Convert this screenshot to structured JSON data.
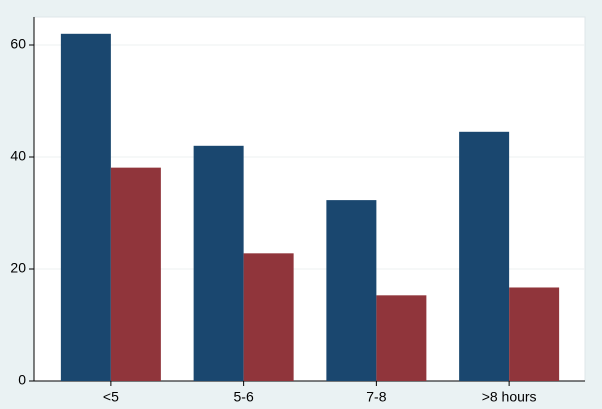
{
  "chart_data": {
    "type": "bar",
    "categories": [
      "<5",
      "5-6",
      "7-8",
      ">8 hours"
    ],
    "series": [
      {
        "color": "#1a476f",
        "values": [
          62,
          42,
          32.3,
          44.5
        ]
      },
      {
        "color": "#90353b",
        "values": [
          38.1,
          22.8,
          15.3,
          16.7
        ]
      }
    ],
    "ylim": [
      0,
      65
    ],
    "yticks": [
      0,
      20,
      40,
      60
    ],
    "grid": true
  }
}
